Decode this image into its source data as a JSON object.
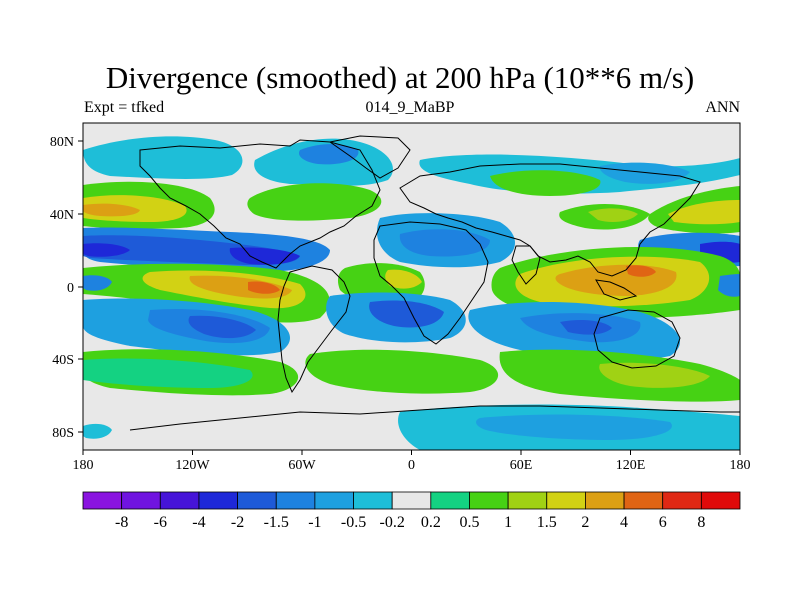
{
  "title": "Divergence (smoothed) at 200 hPa (10**6 m/s)",
  "subtitle_left": "Expt = tfked",
  "subtitle_center": "014_9_MaBP",
  "subtitle_right": "ANN",
  "axes": {
    "x_ticks": [
      "180",
      "120W",
      "60W",
      "0",
      "60E",
      "120E",
      "180"
    ],
    "y_ticks": [
      "80N",
      "40N",
      "0",
      "40S",
      "80S"
    ]
  },
  "colorbar": {
    "labels": [
      "-8",
      "-6",
      "-4",
      "-2",
      "-1.5",
      "-1",
      "-0.5",
      "-0.2",
      "0.2",
      "0.5",
      "1",
      "1.5",
      "2",
      "4",
      "6",
      "8"
    ],
    "colors": [
      "#8a14e0",
      "#7014e0",
      "#4614d8",
      "#1e28d8",
      "#1e5ad8",
      "#1e82e0",
      "#1ea0e0",
      "#1ebed8",
      "#e8e8e8",
      "#14d282",
      "#46d214",
      "#a0d214",
      "#d2d214",
      "#dca014",
      "#e06414",
      "#e02814",
      "#e00a0a"
    ]
  },
  "map_colors": {
    "neutral": "#e8e8e8",
    "cyan": "#1ebed8",
    "lightblue": "#1ea0e0",
    "blue": "#1e82e0",
    "darkblue": "#1e5ad8",
    "navy": "#1e28d8",
    "teal": "#14d282",
    "green": "#46d214",
    "yellowgreen": "#a0d214",
    "yellow": "#d2d214",
    "orange": "#dca014",
    "redorange": "#e06414",
    "red": "#e02814"
  }
}
